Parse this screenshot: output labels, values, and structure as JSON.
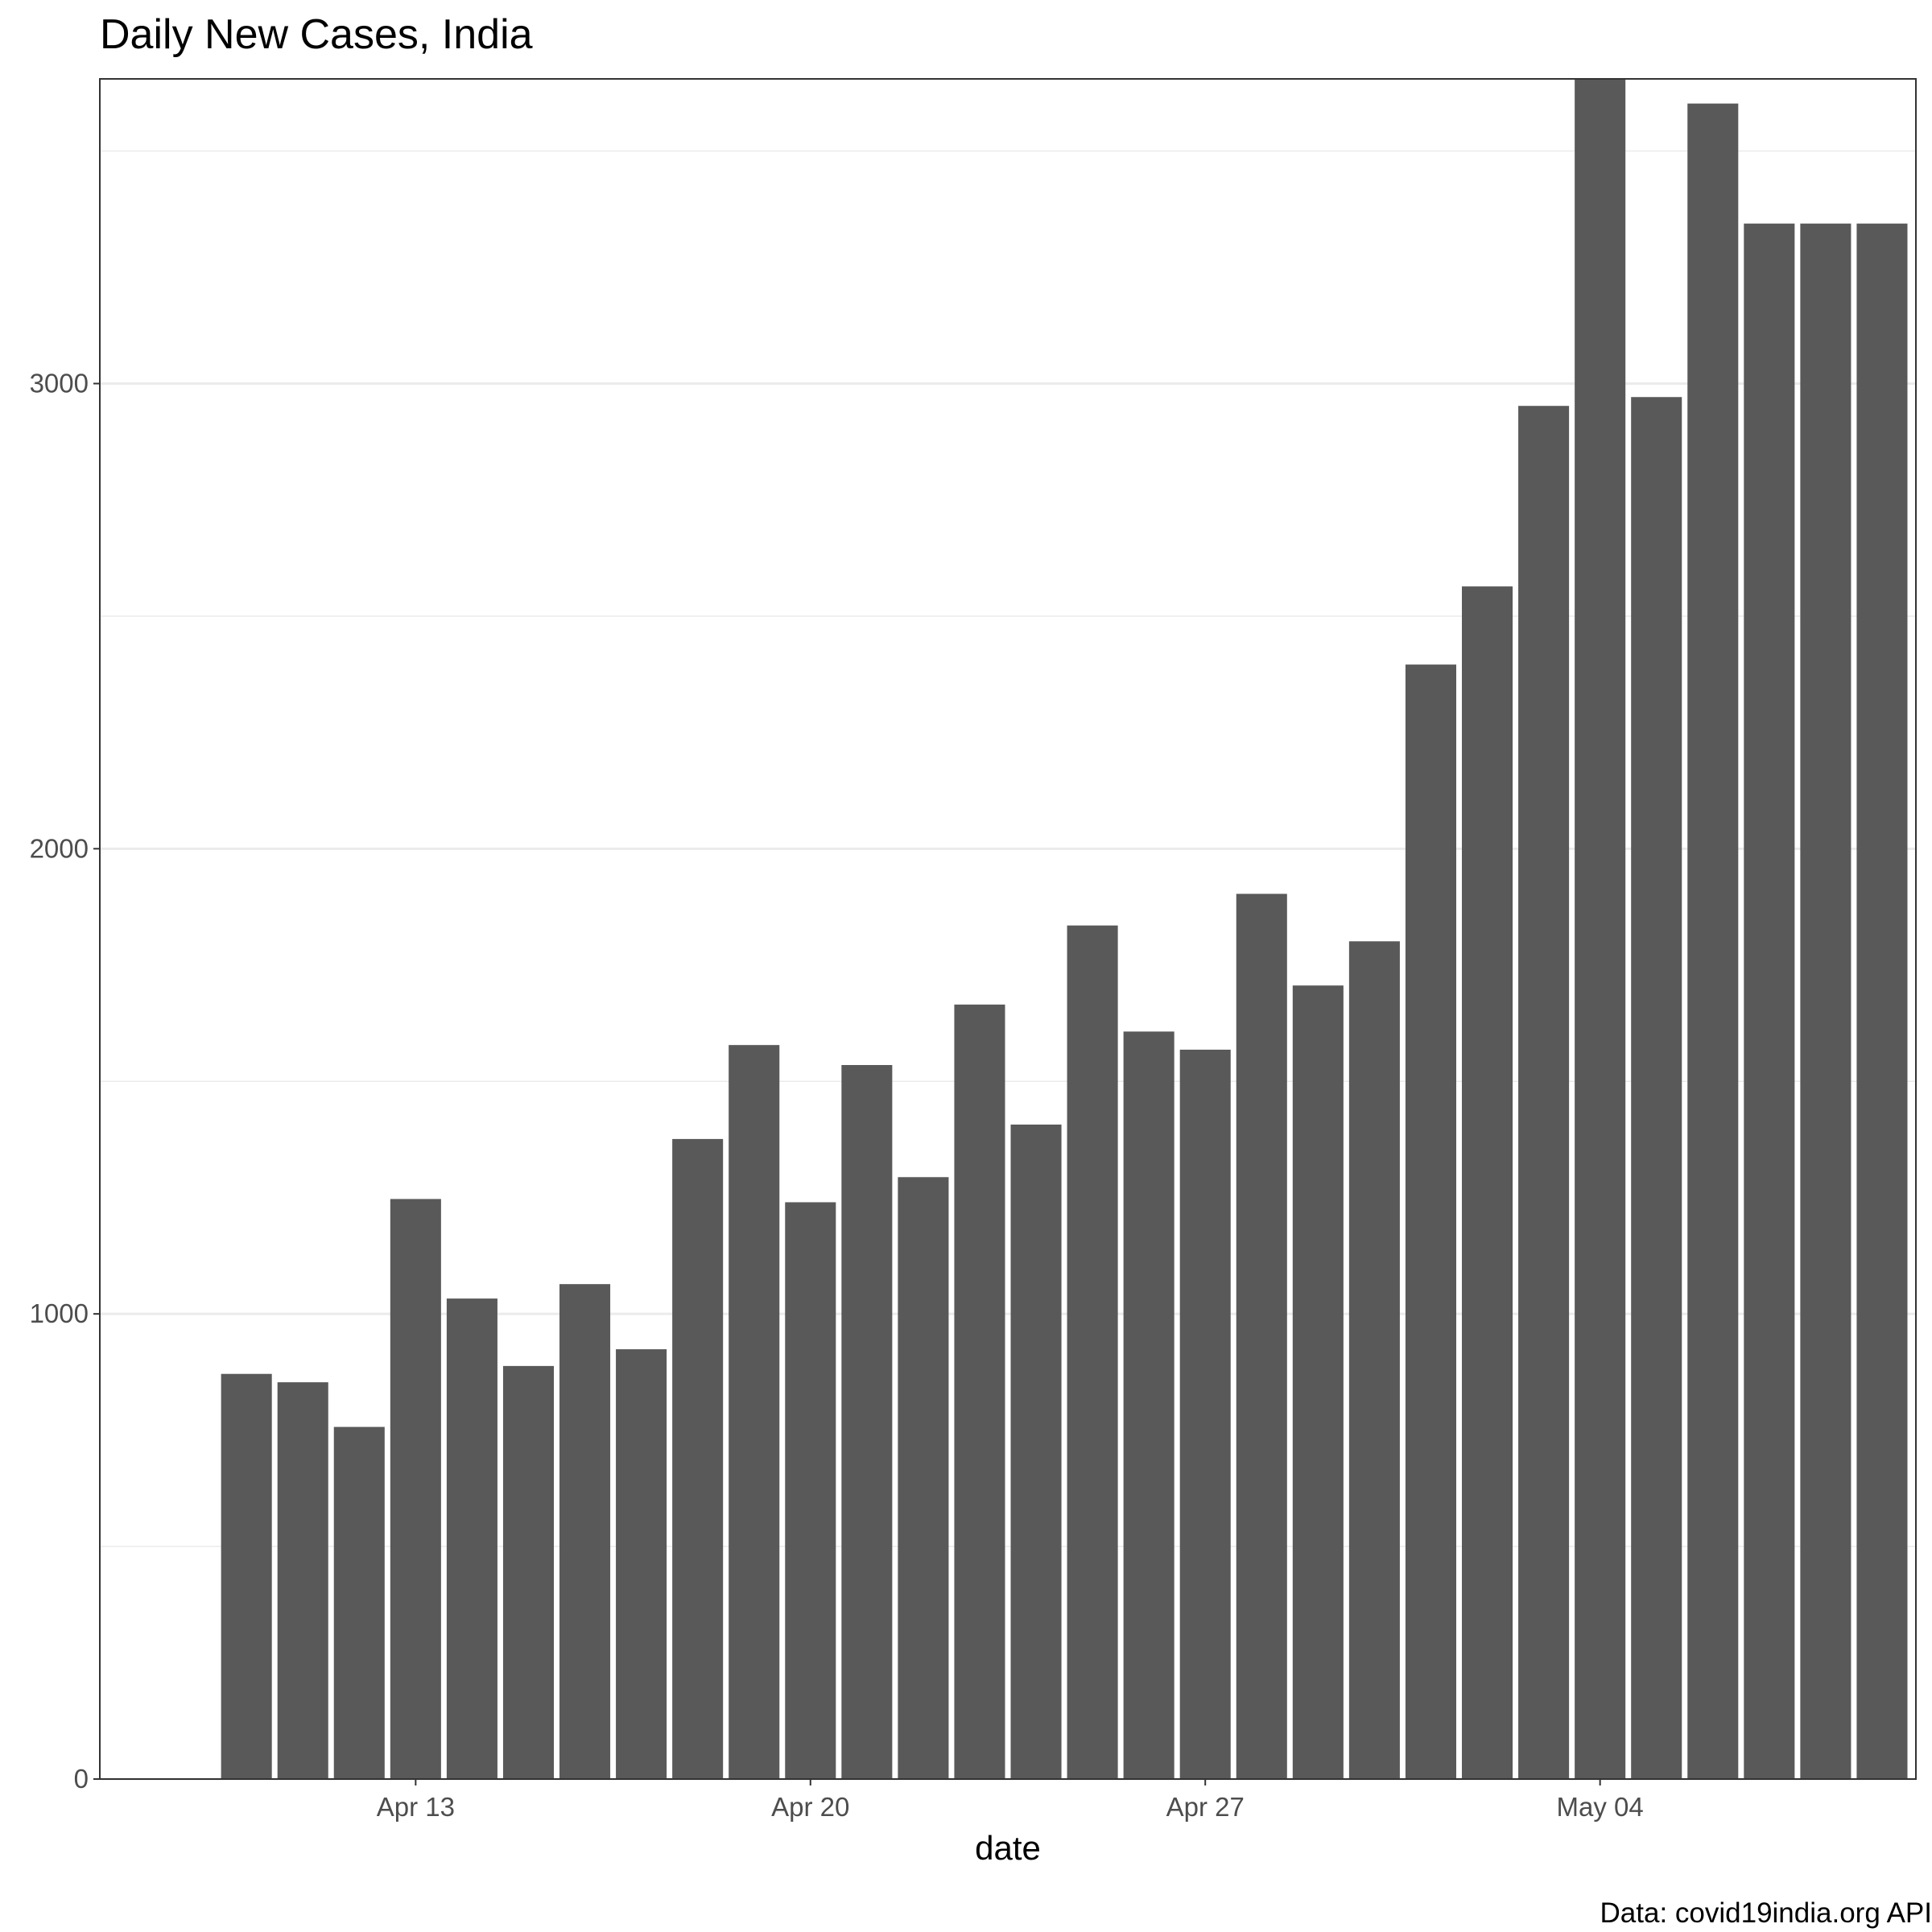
{
  "chart_data": {
    "type": "bar",
    "title": "Daily New Cases, India",
    "xlabel": "date",
    "ylabel": "",
    "caption": "Data: covid19india.org API",
    "bar_color": "#595959",
    "grid": true,
    "ylim": [
      0,
      3655
    ],
    "yticks": [
      0,
      1000,
      2000,
      3000
    ],
    "ytick_labels": [
      "0",
      "1000",
      "2000",
      "3000"
    ],
    "xlim": [
      "2020-04-08",
      "2020-05-09"
    ],
    "xticks": [
      "2020-04-13",
      "2020-04-20",
      "2020-04-27",
      "2020-05-04"
    ],
    "xtick_labels": [
      "Apr 13",
      "Apr 20",
      "Apr 27",
      "May 04"
    ],
    "x": [
      "2020-04-10",
      "2020-04-11",
      "2020-04-12",
      "2020-04-13",
      "2020-04-14",
      "2020-04-15",
      "2020-04-16",
      "2020-04-17",
      "2020-04-18",
      "2020-04-19",
      "2020-04-20",
      "2020-04-21",
      "2020-04-22",
      "2020-04-23",
      "2020-04-24",
      "2020-04-25",
      "2020-04-26",
      "2020-04-27",
      "2020-04-28",
      "2020-04-29",
      "2020-04-30",
      "2020-05-01",
      "2020-05-02",
      "2020-05-03",
      "2020-05-04",
      "2020-05-05",
      "2020-05-06",
      "2020-05-07",
      "2020-05-08",
      "2020-05-09"
    ],
    "values": [
      871,
      853,
      757,
      1247,
      1033,
      888,
      1064,
      924,
      1376,
      1578,
      1240,
      1535,
      1294,
      1665,
      1407,
      1835,
      1607,
      1568,
      1903,
      1706,
      1801,
      2396,
      2564,
      2952,
      3656,
      2971,
      3602,
      3344,
      3344,
      3344
    ]
  }
}
